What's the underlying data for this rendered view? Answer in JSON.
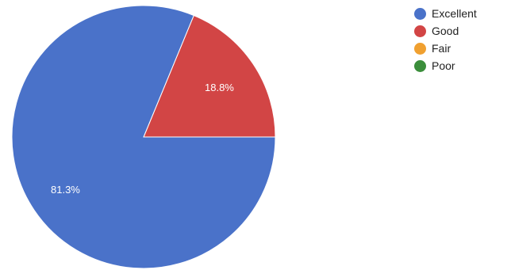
{
  "chart_data": {
    "type": "pie",
    "categories": [
      "Excellent",
      "Good",
      "Fair",
      "Poor"
    ],
    "values": [
      81.3,
      18.8,
      0,
      0
    ],
    "data_labels": [
      "81.3%",
      "18.8%",
      "",
      ""
    ],
    "colors": [
      "#4a72c9",
      "#d24545",
      "#f0a030",
      "#3b8e3b"
    ],
    "legend_position": "right"
  },
  "legend": {
    "items": [
      {
        "label": "Excellent",
        "color": "#4a72c9"
      },
      {
        "label": "Good",
        "color": "#d24545"
      },
      {
        "label": "Fair",
        "color": "#f0a030"
      },
      {
        "label": "Poor",
        "color": "#3b8e3b"
      }
    ]
  }
}
